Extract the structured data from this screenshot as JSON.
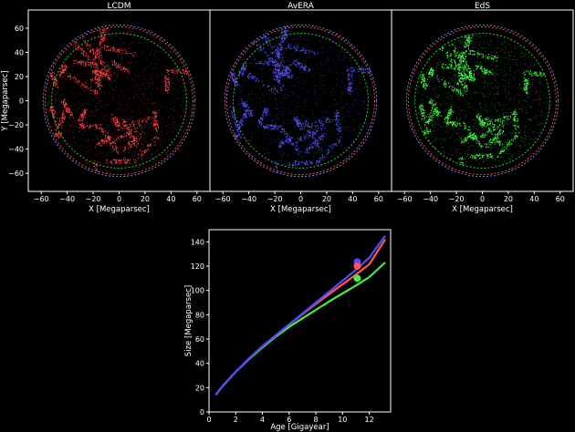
{
  "chart_data": [
    {
      "type": "scatter",
      "title": "LCDM",
      "xlabel": "X [Megaparsec]",
      "ylabel": "Y [Megaparsec]",
      "xlim": [
        -70,
        70
      ],
      "ylim": [
        -75,
        75
      ],
      "xticks": [
        -60,
        -40,
        -20,
        0,
        20,
        40,
        60
      ],
      "yticks": [
        -60,
        -40,
        -20,
        0,
        20,
        40,
        60
      ],
      "point_color": "#ff4444",
      "particle_radius": 57,
      "circles": [
        {
          "radius": 57,
          "color": "#ff5555"
        },
        {
          "radius": 58.5,
          "color": "#8888ff"
        },
        {
          "radius": 52,
          "color": "#33dd33"
        }
      ]
    },
    {
      "type": "scatter",
      "title": "AvERA",
      "xlabel": "X [Megaparsec]",
      "ylabel": "",
      "xlim": [
        -70,
        70
      ],
      "ylim": [
        -75,
        75
      ],
      "xticks": [
        -60,
        -40,
        -20,
        0,
        20,
        40,
        60
      ],
      "yticks": [],
      "point_color": "#5555ff",
      "particle_radius": 58.5,
      "circles": [
        {
          "radius": 57,
          "color": "#ff5555"
        },
        {
          "radius": 58.5,
          "color": "#8888ff"
        },
        {
          "radius": 52,
          "color": "#33dd33"
        }
      ]
    },
    {
      "type": "scatter",
      "title": "EdS",
      "xlabel": "X [Megaparsec]",
      "ylabel": "",
      "xlim": [
        -70,
        70
      ],
      "ylim": [
        -75,
        75
      ],
      "xticks": [
        -60,
        -40,
        -20,
        0,
        20,
        40,
        60
      ],
      "yticks": [],
      "point_color": "#44ff44",
      "particle_radius": 52,
      "circles": [
        {
          "radius": 57,
          "color": "#ff5555"
        },
        {
          "radius": 58.5,
          "color": "#8888ff"
        },
        {
          "radius": 52,
          "color": "#33dd33"
        }
      ]
    },
    {
      "type": "line",
      "title": "",
      "xlabel": "Age [Gigayear]",
      "ylabel": "Size [Megaparsec]",
      "xlim": [
        0,
        13.6
      ],
      "ylim": [
        0,
        150
      ],
      "xticks": [
        0,
        2,
        4,
        6,
        8,
        10,
        12
      ],
      "yticks": [
        0,
        20,
        40,
        60,
        80,
        100,
        120,
        140
      ],
      "series": [
        {
          "color": "#4d4dff",
          "x": [
            0.5,
            1,
            2,
            3,
            4,
            5,
            6,
            7,
            8,
            9,
            10,
            11,
            12,
            13.2
          ],
          "y": [
            14,
            21,
            33,
            44,
            54,
            63,
            72,
            81,
            90,
            99,
            108,
            117,
            127,
            145
          ],
          "marker": {
            "x": 11.1,
            "y": 123.5
          }
        },
        {
          "color": "#ff5555",
          "x": [
            0.5,
            1,
            2,
            3,
            4,
            5,
            6,
            7,
            8,
            9,
            10,
            11,
            12,
            13.2
          ],
          "y": [
            14,
            21,
            33,
            44,
            54,
            63,
            72,
            80.5,
            89,
            97,
            105,
            113,
            121.5,
            142
          ],
          "marker": {
            "x": 11.1,
            "y": 120
          }
        },
        {
          "color": "#44ee44",
          "x": [
            0.5,
            1,
            2,
            3,
            4,
            5,
            6,
            7,
            8,
            9,
            10,
            11,
            12,
            13.2
          ],
          "y": [
            14,
            21,
            33,
            43.5,
            53,
            62,
            70,
            77,
            84,
            91,
            97.5,
            104,
            111,
            123
          ],
          "marker": {
            "x": 11.1,
            "y": 110
          }
        }
      ]
    }
  ]
}
